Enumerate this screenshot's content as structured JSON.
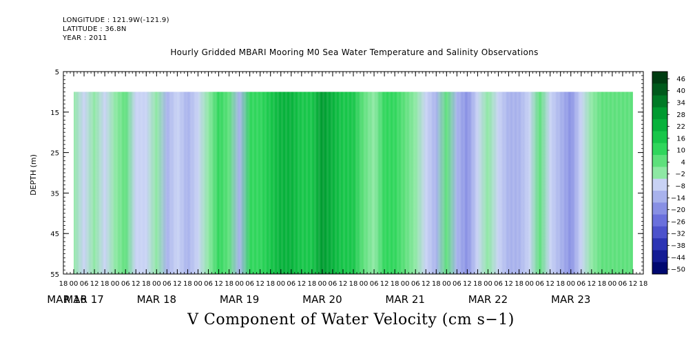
{
  "header": {
    "longitude": "LONGITUDE : 121.9W(-121.9)",
    "latitude": "LATITUDE : 36.8N",
    "year": "YEAR : 2011"
  },
  "chart_data": {
    "type": "heatmap",
    "title": "Hourly Gridded MBARI Mooring M0 Sea Water Temperature and Salinity Observations",
    "subtitle": "V Component of Water Velocity (cm s−1)",
    "xlabel": "",
    "ylabel": "DEPTH (m)",
    "x_range_hours": [
      -6,
      330
    ],
    "data_start_hour": 0,
    "data_end_hour": 324,
    "hour_ticks": [
      {
        "h": -6,
        "label": "18"
      },
      {
        "h": 0,
        "label": "00"
      },
      {
        "h": 6,
        "label": "06"
      },
      {
        "h": 12,
        "label": "12"
      },
      {
        "h": 18,
        "label": "18"
      },
      {
        "h": 24,
        "label": "00"
      },
      {
        "h": 30,
        "label": "06"
      },
      {
        "h": 36,
        "label": "12"
      },
      {
        "h": 42,
        "label": "18"
      },
      {
        "h": 48,
        "label": "00"
      },
      {
        "h": 54,
        "label": "06"
      },
      {
        "h": 60,
        "label": "12"
      },
      {
        "h": 66,
        "label": "18"
      },
      {
        "h": 72,
        "label": "00"
      },
      {
        "h": 78,
        "label": "06"
      },
      {
        "h": 84,
        "label": "12"
      },
      {
        "h": 90,
        "label": "18"
      },
      {
        "h": 96,
        "label": "00"
      },
      {
        "h": 102,
        "label": "06"
      },
      {
        "h": 108,
        "label": "12"
      },
      {
        "h": 114,
        "label": "18"
      },
      {
        "h": 120,
        "label": "00"
      },
      {
        "h": 126,
        "label": "06"
      },
      {
        "h": 132,
        "label": "12"
      },
      {
        "h": 138,
        "label": "18"
      },
      {
        "h": 144,
        "label": "00"
      },
      {
        "h": 150,
        "label": "06"
      },
      {
        "h": 156,
        "label": "12"
      },
      {
        "h": 162,
        "label": "18"
      },
      {
        "h": 168,
        "label": "00"
      },
      {
        "h": 174,
        "label": "06"
      },
      {
        "h": 180,
        "label": "12"
      },
      {
        "h": 186,
        "label": "18"
      },
      {
        "h": 192,
        "label": "00"
      },
      {
        "h": 198,
        "label": "06"
      },
      {
        "h": 204,
        "label": "12"
      },
      {
        "h": 210,
        "label": "18"
      },
      {
        "h": 216,
        "label": "00"
      },
      {
        "h": 222,
        "label": "06"
      },
      {
        "h": 228,
        "label": "12"
      },
      {
        "h": 234,
        "label": "18"
      },
      {
        "h": 240,
        "label": "00"
      },
      {
        "h": 246,
        "label": "06"
      },
      {
        "h": 252,
        "label": "12"
      },
      {
        "h": 258,
        "label": "18"
      },
      {
        "h": 264,
        "label": "00"
      },
      {
        "h": 270,
        "label": "06"
      },
      {
        "h": 276,
        "label": "12"
      },
      {
        "h": 282,
        "label": "18"
      },
      {
        "h": 288,
        "label": "00"
      },
      {
        "h": 294,
        "label": "06"
      },
      {
        "h": 300,
        "label": "12"
      },
      {
        "h": 306,
        "label": "18"
      },
      {
        "h": 312,
        "label": "00"
      },
      {
        "h": 318,
        "label": "06"
      },
      {
        "h": 324,
        "label": "12"
      },
      {
        "h": 330,
        "label": "18"
      }
    ],
    "day_labels": [
      {
        "h": -4,
        "label": "MAR 16"
      },
      {
        "h": 6,
        "label": "MAR 17"
      },
      {
        "h": 48,
        "label": "MAR 18"
      },
      {
        "h": 96,
        "label": "MAR 19"
      },
      {
        "h": 144,
        "label": "MAR 20"
      },
      {
        "h": 192,
        "label": "MAR 21"
      },
      {
        "h": 240,
        "label": "MAR 22"
      },
      {
        "h": 288,
        "label": "MAR 23"
      }
    ],
    "y_range": [
      5,
      55
    ],
    "y_ticks": [
      5,
      15,
      25,
      35,
      45,
      55
    ],
    "data_depth_range": [
      10,
      55
    ],
    "data_profile": [
      {
        "h": 0,
        "v": 2
      },
      {
        "h": 6,
        "v": -4
      },
      {
        "h": 12,
        "v": 3
      },
      {
        "h": 18,
        "v": -6
      },
      {
        "h": 24,
        "v": -2
      },
      {
        "h": 30,
        "v": 4
      },
      {
        "h": 36,
        "v": -8
      },
      {
        "h": 42,
        "v": -3
      },
      {
        "h": 48,
        "v": 2
      },
      {
        "h": 54,
        "v": -10
      },
      {
        "h": 60,
        "v": -4
      },
      {
        "h": 66,
        "v": -12
      },
      {
        "h": 72,
        "v": -6
      },
      {
        "h": 78,
        "v": -2
      },
      {
        "h": 84,
        "v": 12
      },
      {
        "h": 90,
        "v": 8
      },
      {
        "h": 96,
        "v": -14
      },
      {
        "h": 102,
        "v": 10
      },
      {
        "h": 108,
        "v": 14
      },
      {
        "h": 114,
        "v": 18
      },
      {
        "h": 120,
        "v": 22
      },
      {
        "h": 126,
        "v": 24
      },
      {
        "h": 132,
        "v": 16
      },
      {
        "h": 138,
        "v": 20
      },
      {
        "h": 144,
        "v": 28
      },
      {
        "h": 150,
        "v": 26
      },
      {
        "h": 156,
        "v": 20
      },
      {
        "h": 162,
        "v": 18
      },
      {
        "h": 168,
        "v": 8
      },
      {
        "h": 174,
        "v": 2
      },
      {
        "h": 180,
        "v": 10
      },
      {
        "h": 186,
        "v": 14
      },
      {
        "h": 192,
        "v": 8
      },
      {
        "h": 198,
        "v": 2
      },
      {
        "h": 204,
        "v": -6
      },
      {
        "h": 210,
        "v": -10
      },
      {
        "h": 216,
        "v": 8
      },
      {
        "h": 222,
        "v": -12
      },
      {
        "h": 228,
        "v": -16
      },
      {
        "h": 234,
        "v": -4
      },
      {
        "h": 240,
        "v": 2
      },
      {
        "h": 246,
        "v": -6
      },
      {
        "h": 252,
        "v": -10
      },
      {
        "h": 258,
        "v": -12
      },
      {
        "h": 264,
        "v": -4
      },
      {
        "h": 270,
        "v": 4
      },
      {
        "h": 276,
        "v": -8
      },
      {
        "h": 282,
        "v": -14
      },
      {
        "h": 288,
        "v": -16
      },
      {
        "h": 294,
        "v": -6
      },
      {
        "h": 300,
        "v": 2
      },
      {
        "h": 306,
        "v": 6
      },
      {
        "h": 312,
        "v": 8
      },
      {
        "h": 318,
        "v": 4
      },
      {
        "h": 324,
        "v": 6
      }
    ],
    "colorbar": {
      "levels": [
        46,
        40,
        34,
        28,
        22,
        16,
        10,
        4,
        -2,
        -8,
        -14,
        -20,
        -26,
        -32,
        -38,
        -44,
        -50
      ],
      "colors": [
        "#003d12",
        "#005a1c",
        "#007a26",
        "#009a30",
        "#08b23c",
        "#18c64a",
        "#30d65c",
        "#5ee07c",
        "#8ee8a4",
        "#c8d2f4",
        "#a8b2ec",
        "#8890e4",
        "#6a70dc",
        "#4c52cc",
        "#2c34b4",
        "#141c94",
        "#000870"
      ]
    }
  }
}
